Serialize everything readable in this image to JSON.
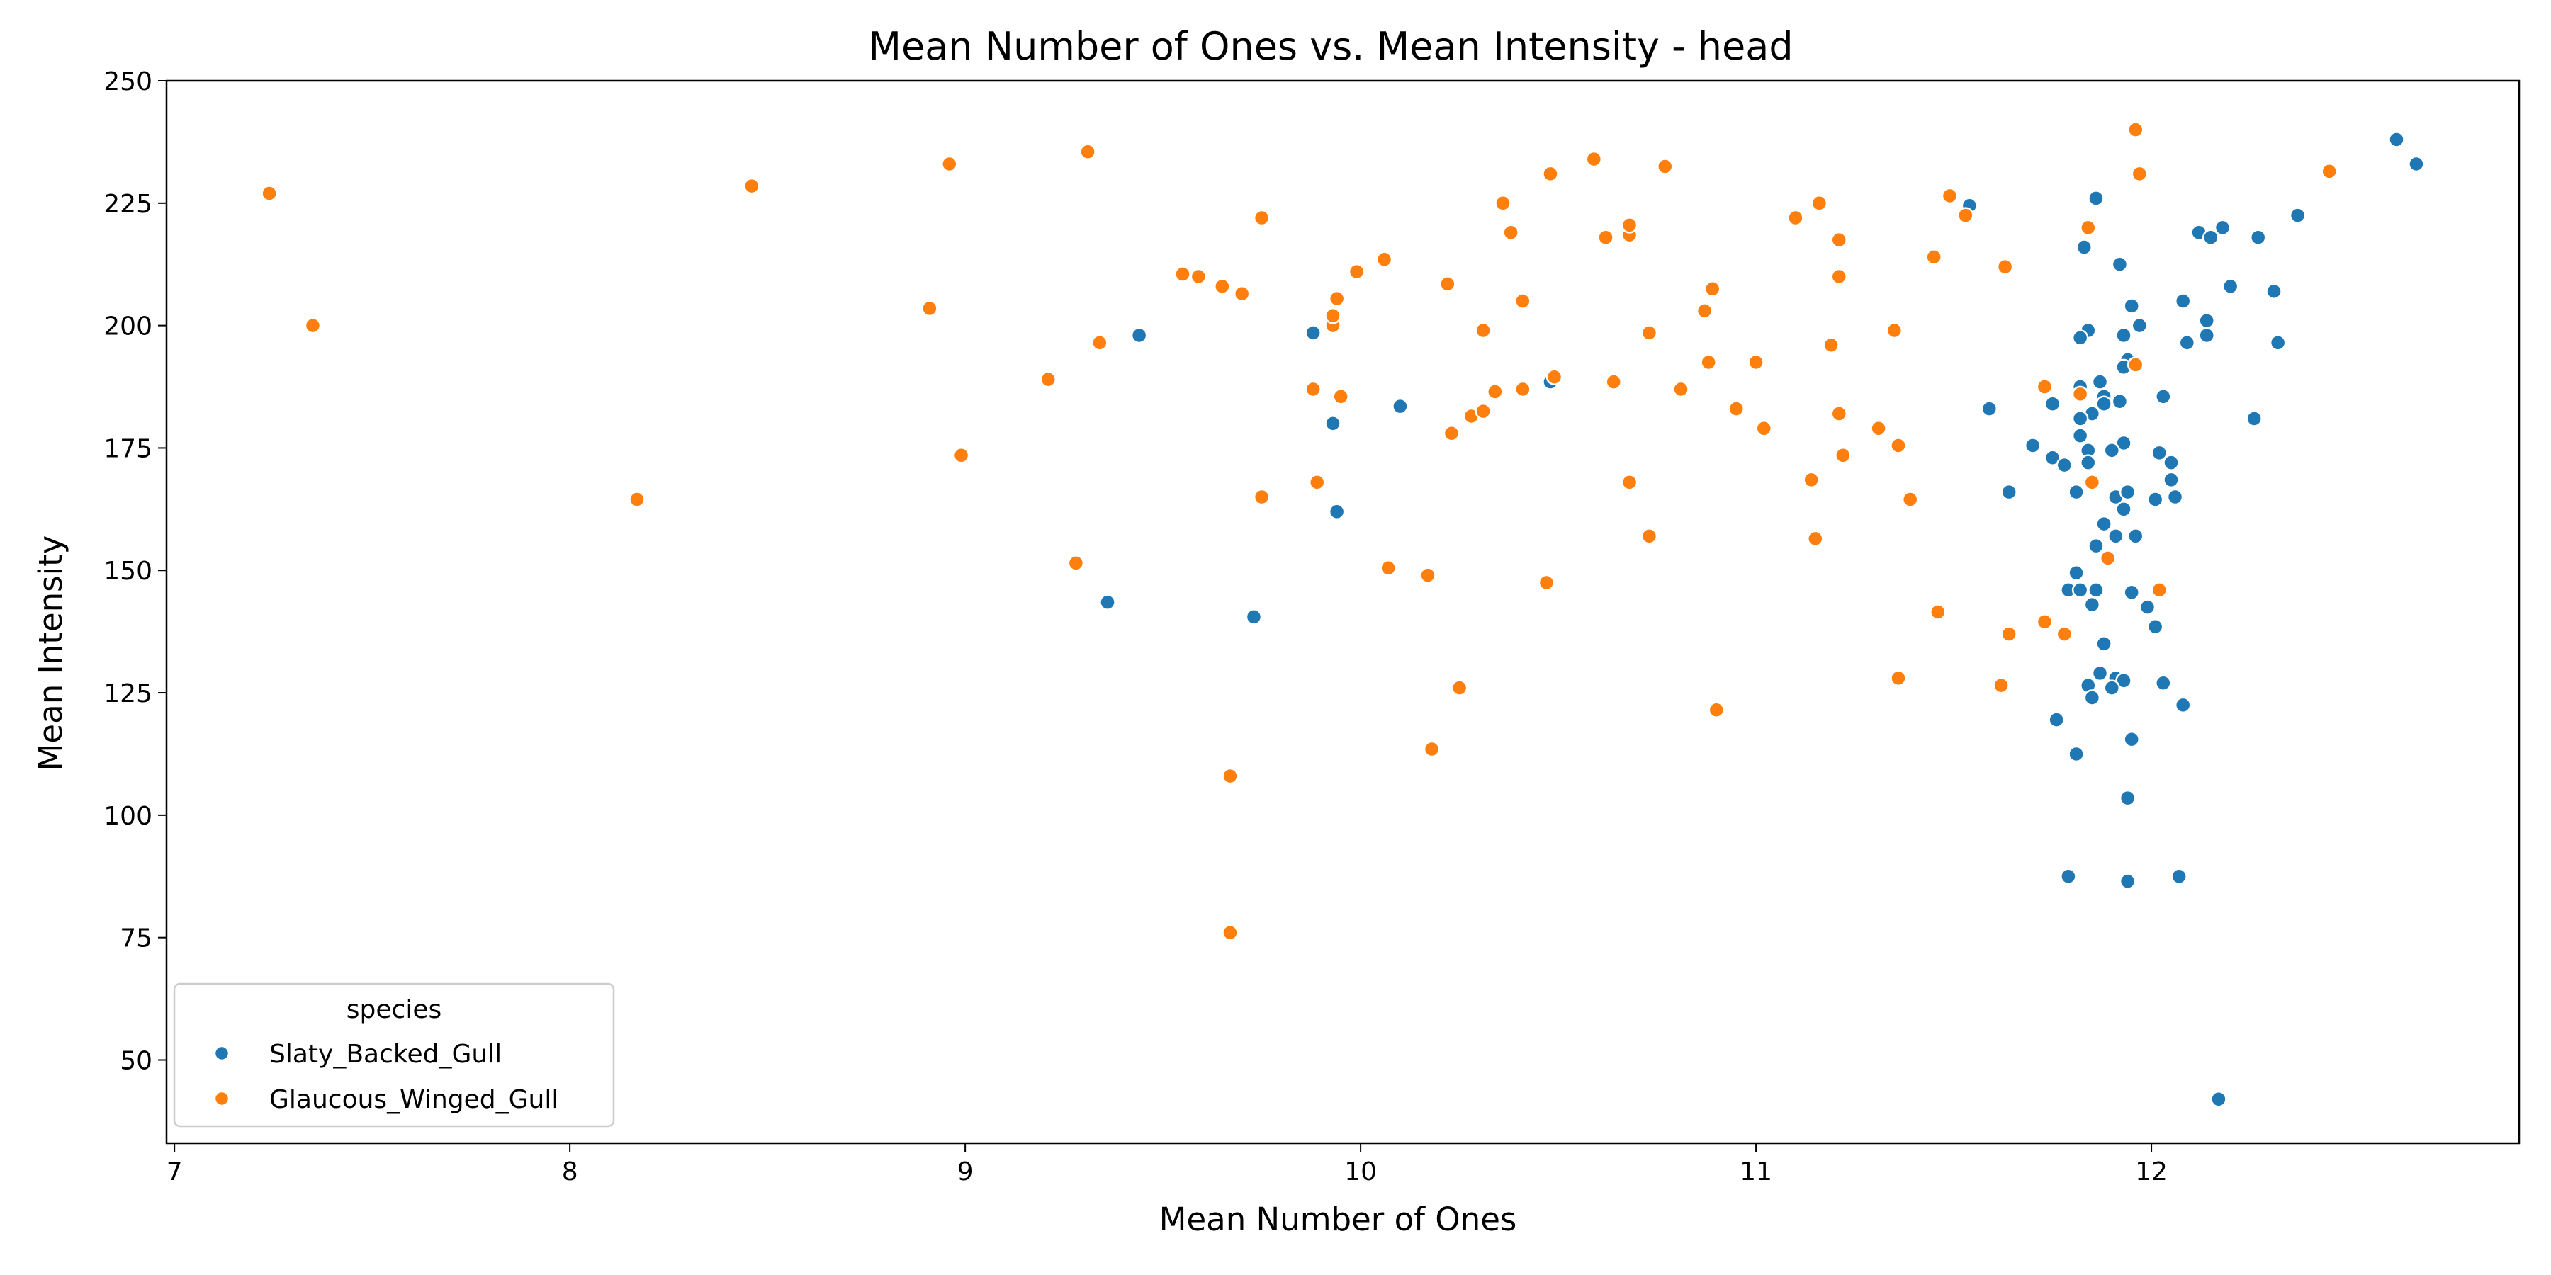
{
  "chart_data": {
    "type": "scatter",
    "title": "Mean Number of Ones vs. Mean Intensity - head",
    "xlabel": "Mean Number of Ones",
    "ylabel": "Mean Intensity",
    "xlim": [
      6.98,
      12.93
    ],
    "ylim": [
      33,
      250
    ],
    "xticks": [
      7,
      8,
      9,
      10,
      11,
      12
    ],
    "yticks": [
      50,
      75,
      100,
      125,
      150,
      175,
      200,
      225,
      250
    ],
    "grid": false,
    "legend": {
      "title": "species",
      "placement": "lower-left"
    },
    "series": [
      {
        "name": "Slaty_Backed_Gull",
        "color": "#1f77b4",
        "points": [
          [
            9.44,
            198
          ],
          [
            9.88,
            198.5
          ],
          [
            9.93,
            180
          ],
          [
            9.94,
            162
          ],
          [
            10.1,
            183.5
          ],
          [
            9.36,
            143.5
          ],
          [
            9.73,
            140.5
          ],
          [
            10.48,
            188.5
          ],
          [
            11.54,
            224.5
          ],
          [
            11.86,
            226
          ],
          [
            11.83,
            216
          ],
          [
            11.92,
            212.5
          ],
          [
            11.95,
            204
          ],
          [
            11.97,
            200
          ],
          [
            11.93,
            198
          ],
          [
            11.84,
            199
          ],
          [
            11.82,
            197.5
          ],
          [
            11.94,
            193
          ],
          [
            11.93,
            191.5
          ],
          [
            11.96,
            192
          ],
          [
            11.87,
            188.5
          ],
          [
            11.82,
            187.5
          ],
          [
            11.88,
            185.5
          ],
          [
            11.92,
            184.5
          ],
          [
            11.88,
            184
          ],
          [
            11.75,
            184
          ],
          [
            11.85,
            182
          ],
          [
            11.82,
            181
          ],
          [
            11.59,
            183
          ],
          [
            11.7,
            175.5
          ],
          [
            11.82,
            177.5
          ],
          [
            11.93,
            176
          ],
          [
            11.9,
            174.5
          ],
          [
            11.84,
            174.5
          ],
          [
            11.84,
            172
          ],
          [
            11.75,
            173
          ],
          [
            11.78,
            171.5
          ],
          [
            11.81,
            166
          ],
          [
            11.64,
            166
          ],
          [
            11.91,
            165
          ],
          [
            11.94,
            166
          ],
          [
            11.93,
            162.5
          ],
          [
            11.88,
            159.5
          ],
          [
            11.91,
            157
          ],
          [
            11.96,
            157
          ],
          [
            11.86,
            155
          ],
          [
            11.81,
            149.5
          ],
          [
            11.79,
            146
          ],
          [
            11.82,
            146
          ],
          [
            11.86,
            146
          ],
          [
            11.95,
            145.5
          ],
          [
            11.85,
            143
          ],
          [
            11.99,
            142.5
          ],
          [
            12.01,
            138.5
          ],
          [
            11.88,
            135
          ],
          [
            11.87,
            129
          ],
          [
            11.91,
            128
          ],
          [
            11.93,
            127.5
          ],
          [
            11.84,
            126.5
          ],
          [
            11.9,
            126
          ],
          [
            11.85,
            124
          ],
          [
            12.03,
            127
          ],
          [
            12.08,
            122.5
          ],
          [
            11.76,
            119.5
          ],
          [
            11.95,
            115.5
          ],
          [
            11.81,
            112.5
          ],
          [
            11.94,
            103.5
          ],
          [
            11.79,
            87.5
          ],
          [
            11.94,
            86.5
          ],
          [
            12.07,
            87.5
          ],
          [
            12.17,
            42
          ],
          [
            12.62,
            238
          ],
          [
            12.67,
            233
          ],
          [
            12.37,
            222.5
          ],
          [
            12.12,
            219
          ],
          [
            12.15,
            218
          ],
          [
            12.18,
            220
          ],
          [
            12.27,
            218
          ],
          [
            12.2,
            208
          ],
          [
            12.31,
            207
          ],
          [
            12.08,
            205
          ],
          [
            12.14,
            201
          ],
          [
            12.14,
            198
          ],
          [
            12.09,
            196.5
          ],
          [
            12.32,
            196.5
          ],
          [
            12.03,
            185.5
          ],
          [
            12.26,
            181
          ],
          [
            12.02,
            174
          ],
          [
            12.05,
            172
          ],
          [
            12.05,
            168.5
          ],
          [
            12.06,
            165
          ],
          [
            12.01,
            164.5
          ]
        ]
      },
      {
        "name": "Glaucous_Winged_Gull",
        "color": "#ff7f0e",
        "points": [
          [
            7.24,
            227
          ],
          [
            7.35,
            200
          ],
          [
            8.17,
            164.5
          ],
          [
            8.46,
            228.5
          ],
          [
            8.91,
            203.5
          ],
          [
            8.96,
            233
          ],
          [
            8.99,
            173.5
          ],
          [
            9.21,
            189
          ],
          [
            9.28,
            151.5
          ],
          [
            9.31,
            235.5
          ],
          [
            9.34,
            196.5
          ],
          [
            9.55,
            210.5
          ],
          [
            9.59,
            210
          ],
          [
            9.65,
            208
          ],
          [
            9.7,
            206.5
          ],
          [
            9.67,
            108
          ],
          [
            9.67,
            76
          ],
          [
            9.75,
            222
          ],
          [
            9.75,
            165
          ],
          [
            9.88,
            187
          ],
          [
            9.89,
            168
          ],
          [
            9.93,
            200
          ],
          [
            9.93,
            202
          ],
          [
            9.94,
            205.5
          ],
          [
            9.95,
            185.5
          ],
          [
            9.99,
            211
          ],
          [
            10.06,
            213.5
          ],
          [
            10.07,
            150.5
          ],
          [
            10.17,
            149
          ],
          [
            10.18,
            113.5
          ],
          [
            10.22,
            208.5
          ],
          [
            10.23,
            178
          ],
          [
            10.25,
            126
          ],
          [
            10.28,
            181.5
          ],
          [
            10.31,
            182.5
          ],
          [
            10.31,
            199
          ],
          [
            10.34,
            186.5
          ],
          [
            10.36,
            225
          ],
          [
            10.38,
            219
          ],
          [
            10.41,
            205
          ],
          [
            10.41,
            187
          ],
          [
            10.47,
            147.5
          ],
          [
            10.48,
            231
          ],
          [
            10.49,
            189.5
          ],
          [
            10.59,
            234
          ],
          [
            10.62,
            218
          ],
          [
            10.64,
            188.5
          ],
          [
            10.68,
            218.5
          ],
          [
            10.68,
            220.5
          ],
          [
            10.68,
            168
          ],
          [
            10.73,
            198.5
          ],
          [
            10.73,
            157
          ],
          [
            10.77,
            232.5
          ],
          [
            10.81,
            187
          ],
          [
            10.87,
            203
          ],
          [
            10.88,
            192.5
          ],
          [
            10.89,
            207.5
          ],
          [
            10.9,
            121.5
          ],
          [
            10.95,
            183
          ],
          [
            11.0,
            192.5
          ],
          [
            11.02,
            179
          ],
          [
            11.1,
            222
          ],
          [
            11.14,
            168.5
          ],
          [
            11.15,
            156.5
          ],
          [
            11.16,
            225
          ],
          [
            11.19,
            196
          ],
          [
            11.21,
            217.5
          ],
          [
            11.21,
            210
          ],
          [
            11.21,
            182
          ],
          [
            11.22,
            173.5
          ],
          [
            11.31,
            179
          ],
          [
            11.35,
            199
          ],
          [
            11.36,
            128
          ],
          [
            11.36,
            175.5
          ],
          [
            11.39,
            164.5
          ],
          [
            11.45,
            214
          ],
          [
            11.46,
            141.5
          ],
          [
            11.49,
            226.5
          ],
          [
            11.53,
            222.5
          ],
          [
            11.62,
            126.5
          ],
          [
            11.63,
            212
          ],
          [
            11.64,
            137
          ],
          [
            11.73,
            139.5
          ],
          [
            11.73,
            187.5
          ],
          [
            11.78,
            137
          ],
          [
            11.82,
            186
          ],
          [
            11.84,
            220
          ],
          [
            11.85,
            168
          ],
          [
            11.89,
            152.5
          ],
          [
            11.96,
            240
          ],
          [
            11.97,
            231
          ],
          [
            11.96,
            192
          ],
          [
            12.02,
            146
          ],
          [
            12.45,
            231.5
          ]
        ]
      }
    ]
  }
}
